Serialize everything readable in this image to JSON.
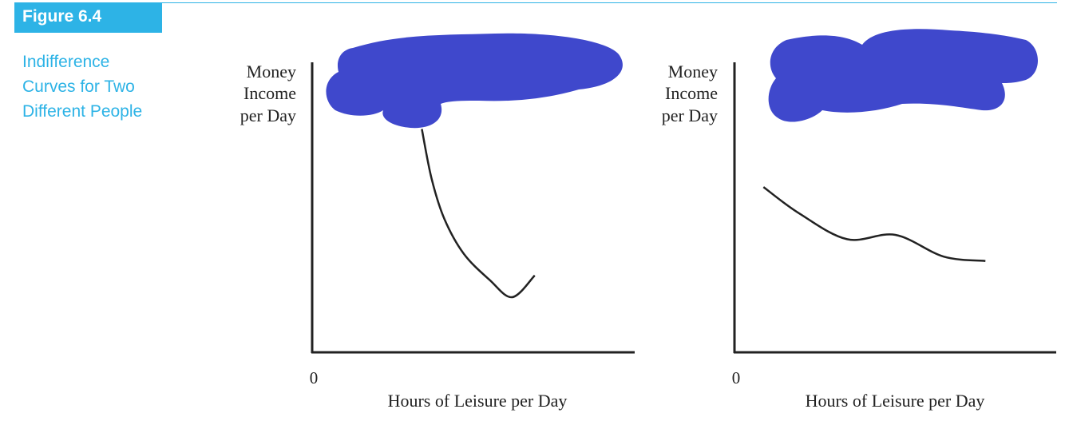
{
  "figure": {
    "label": "Figure 6.4",
    "caption_lines": [
      "Indifference",
      "Curves for Two",
      "Different People"
    ],
    "accent_color": "#2db3e6",
    "redaction_color": "#3f48cc"
  },
  "chart_data": [
    {
      "type": "line",
      "title": "",
      "ylabel_lines": [
        "Money",
        "Income",
        "per Day"
      ],
      "xlabel": "Hours of Leisure per Day",
      "origin_label": "0",
      "xlim": [
        0,
        100
      ],
      "ylim": [
        0,
        100
      ],
      "grid": false,
      "series": [
        {
          "x": [
            34,
            37,
            41,
            47,
            55,
            62,
            69
          ],
          "y": [
            77,
            60,
            46,
            34,
            25,
            19,
            26.5
          ]
        }
      ]
    },
    {
      "type": "line",
      "title": "",
      "ylabel_lines": [
        "Money",
        "Income",
        "per Day"
      ],
      "xlabel": "Hours of Leisure per Day",
      "origin_label": "0",
      "xlim": [
        0,
        100
      ],
      "ylim": [
        0,
        100
      ],
      "grid": false,
      "series": [
        {
          "x": [
            9,
            20,
            35,
            50,
            65,
            78
          ],
          "y": [
            57,
            48,
            39,
            40.5,
            33,
            31.5
          ]
        }
      ]
    }
  ]
}
